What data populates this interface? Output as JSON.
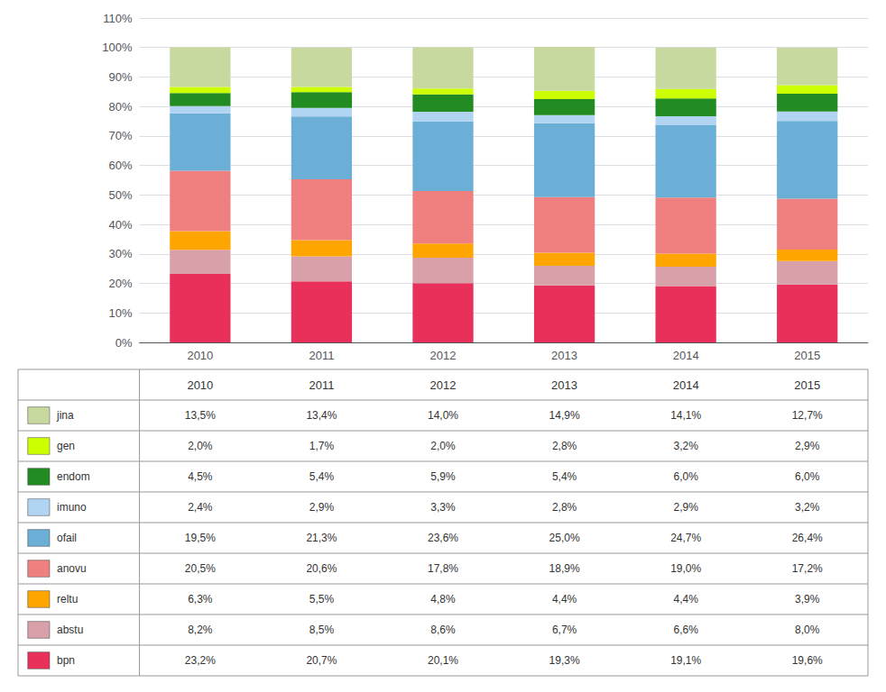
{
  "chart_data": {
    "type": "bar",
    "stacked": true,
    "grid": true,
    "categories": [
      "2010",
      "2011",
      "2012",
      "2013",
      "2014",
      "2015"
    ],
    "series": [
      {
        "name": "bpn",
        "color": "#E8305A",
        "values": [
          23.2,
          20.7,
          20.1,
          19.3,
          19.1,
          19.6
        ],
        "value_labels": [
          "23,2%",
          "20,7%",
          "20,1%",
          "19,3%",
          "19,1%",
          "19,6%"
        ]
      },
      {
        "name": "abstu",
        "color": "#D8A0A8",
        "values": [
          8.2,
          8.5,
          8.6,
          6.7,
          6.6,
          8.0
        ],
        "value_labels": [
          "8,2%",
          "8,5%",
          "8,6%",
          "6,7%",
          "6,6%",
          "8,0%"
        ]
      },
      {
        "name": "reltu",
        "color": "#FFA500",
        "values": [
          6.3,
          5.5,
          4.8,
          4.4,
          4.4,
          3.9
        ],
        "value_labels": [
          "6,3%",
          "5,5%",
          "4,8%",
          "4,4%",
          "4,4%",
          "3,9%"
        ]
      },
      {
        "name": "anovu",
        "color": "#F08080",
        "values": [
          20.5,
          20.6,
          17.8,
          18.9,
          19.0,
          17.2
        ],
        "value_labels": [
          "20,5%",
          "20,6%",
          "17,8%",
          "18,9%",
          "19,0%",
          "17,2%"
        ]
      },
      {
        "name": "ofail",
        "color": "#6BAED6",
        "values": [
          19.5,
          21.3,
          23.6,
          25.0,
          24.7,
          26.4
        ],
        "value_labels": [
          "19,5%",
          "21,3%",
          "23,6%",
          "25,0%",
          "24,7%",
          "26,4%"
        ]
      },
      {
        "name": "imuno",
        "color": "#B0D4F1",
        "values": [
          2.4,
          2.9,
          3.3,
          2.8,
          2.9,
          3.2
        ],
        "value_labels": [
          "2,4%",
          "2,9%",
          "3,3%",
          "2,8%",
          "2,9%",
          "3,2%"
        ]
      },
      {
        "name": "endom",
        "color": "#228B22",
        "values": [
          4.5,
          5.4,
          5.9,
          5.4,
          6.0,
          6.0
        ],
        "value_labels": [
          "4,5%",
          "5,4%",
          "5,9%",
          "5,4%",
          "6,0%",
          "6,0%"
        ]
      },
      {
        "name": "gen",
        "color": "#CCFF00",
        "values": [
          2.0,
          1.7,
          2.0,
          2.8,
          3.2,
          2.9
        ],
        "value_labels": [
          "2,0%",
          "1,7%",
          "2,0%",
          "2,8%",
          "3,2%",
          "2,9%"
        ]
      },
      {
        "name": "jina",
        "color": "#C8D9A0",
        "values": [
          13.5,
          13.4,
          14.0,
          14.9,
          14.1,
          12.7
        ],
        "value_labels": [
          "13,5%",
          "13,4%",
          "14,0%",
          "14,9%",
          "14,1%",
          "12,7%"
        ]
      }
    ],
    "ylim": [
      0,
      110
    ],
    "yticks": [
      {
        "value": 0,
        "label": "0%"
      },
      {
        "value": 10,
        "label": "10%"
      },
      {
        "value": 20,
        "label": "20%"
      },
      {
        "value": 30,
        "label": "30%"
      },
      {
        "value": 40,
        "label": "40%"
      },
      {
        "value": 50,
        "label": "50%"
      },
      {
        "value": 60,
        "label": "60%"
      },
      {
        "value": 70,
        "label": "70%"
      },
      {
        "value": 80,
        "label": "80%"
      },
      {
        "value": 90,
        "label": "90%"
      },
      {
        "value": 100,
        "label": "100%"
      },
      {
        "value": 110,
        "label": "110%"
      }
    ]
  }
}
